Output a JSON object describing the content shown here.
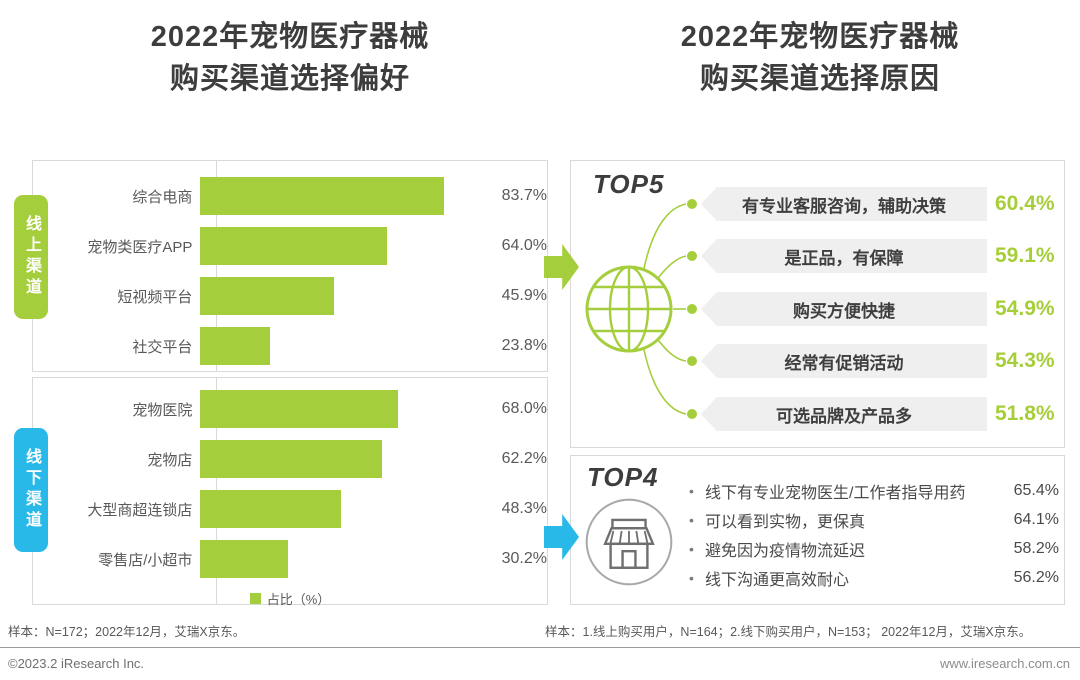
{
  "titles": {
    "left_line1": "2022年宠物医疗器械",
    "left_line2": "购买渠道选择偏好",
    "right_line1": "2022年宠物医疗器械",
    "right_line2": "购买渠道选择原因"
  },
  "colors": {
    "bar_green": "#a5ce3d",
    "tab_blue": "#29b9e8",
    "value_green": "#a6ce39",
    "pill_bg": "#efefef",
    "border_gray": "#d9d9d9"
  },
  "chart_data": [
    {
      "type": "bar",
      "panel": "left",
      "title": "2022年宠物医疗器械购买渠道选择偏好",
      "legend": "占比（%）",
      "xlabel": "",
      "ylabel": "",
      "xlim": [
        0,
        100
      ],
      "unit": "%",
      "groups": [
        {
          "label": "线上渠道",
          "items": [
            {
              "category": "综合电商",
              "value": 83.7,
              "display": "83.7%"
            },
            {
              "category": "宠物类医疗APP",
              "value": 64.0,
              "display": "64.0%"
            },
            {
              "category": "短视频平台",
              "value": 45.9,
              "display": "45.9%"
            },
            {
              "category": "社交平台",
              "value": 23.8,
              "display": "23.8%"
            }
          ]
        },
        {
          "label": "线下渠道",
          "items": [
            {
              "category": "宠物医院",
              "value": 68.0,
              "display": "68.0%"
            },
            {
              "category": "宠物店",
              "value": 62.2,
              "display": "62.2%"
            },
            {
              "category": "大型商超连锁店",
              "value": 48.3,
              "display": "48.3%"
            },
            {
              "category": "零售店/小超市",
              "value": 30.2,
              "display": "30.2%"
            }
          ]
        }
      ]
    },
    {
      "type": "table",
      "panel": "right-top",
      "title": "TOP5",
      "icon": "globe-icon",
      "rows": [
        {
          "text": "有专业客服咨询，辅助决策",
          "value": 60.4,
          "display": "60.4%"
        },
        {
          "text": "是正品，有保障",
          "value": 59.1,
          "display": "59.1%"
        },
        {
          "text": "购买方便快捷",
          "value": 54.9,
          "display": "54.9%"
        },
        {
          "text": "经常有促销活动",
          "value": 54.3,
          "display": "54.3%"
        },
        {
          "text": "可选品牌及产品多",
          "value": 51.8,
          "display": "51.8%"
        }
      ]
    },
    {
      "type": "table",
      "panel": "right-bottom",
      "title": "TOP4",
      "icon": "storefront-icon",
      "bullet": "•",
      "rows": [
        {
          "text": "线下有专业宠物医生/工作者指导用药",
          "value": 65.4,
          "display": "65.4%"
        },
        {
          "text": "可以看到实物，更保真",
          "value": 64.1,
          "display": "64.1%"
        },
        {
          "text": "避免因为疫情物流延迟",
          "value": 58.2,
          "display": "58.2%"
        },
        {
          "text": "线下沟通更高效耐心",
          "value": 56.2,
          "display": "56.2%"
        }
      ]
    }
  ],
  "footnotes": {
    "left": "样本：N=172；2022年12月，艾瑞X京东。",
    "right": "样本：1.线上购买用户，N=164；2.线下购买用户，N=153； 2022年12月，艾瑞X京东。"
  },
  "footer": {
    "left": "©2023.2 iResearch Inc.",
    "right": "www.iresearch.com.cn"
  }
}
